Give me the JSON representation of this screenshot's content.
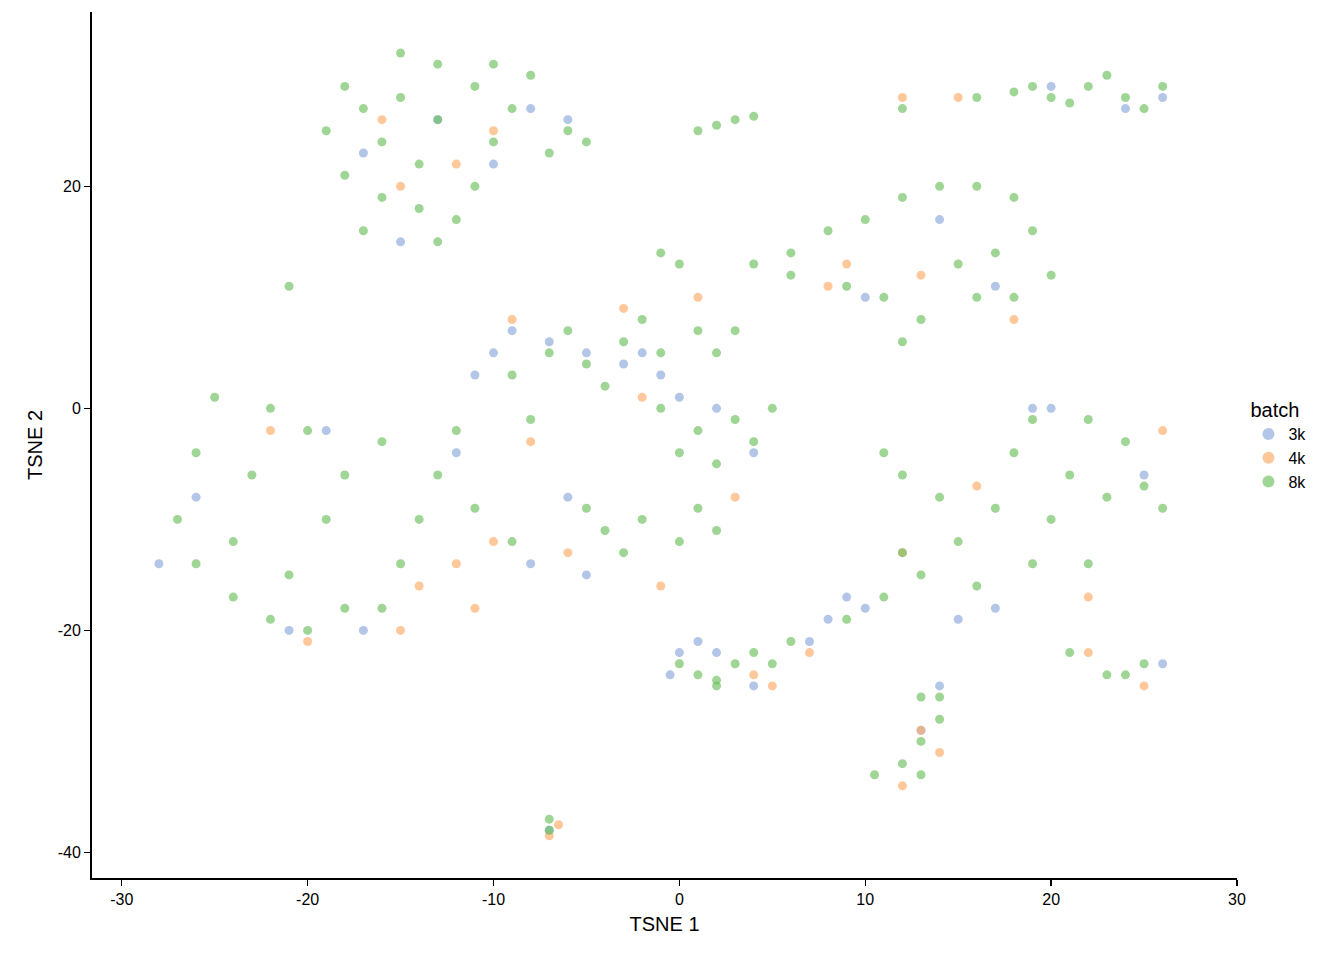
{
  "chart_data": {
    "type": "scatter",
    "x_label": "TSNE 1",
    "y_label": "TSNE 2",
    "legend_title": "batch",
    "legend": "right",
    "grid": false,
    "marker": "circle",
    "xlim": [
      -31.6,
      30
    ],
    "ylim": [
      -42.3,
      35.7
    ],
    "xticks": [
      -30,
      -20,
      -10,
      0,
      10,
      20,
      30
    ],
    "yticks": [
      -40,
      -20,
      0,
      20
    ],
    "series": [
      {
        "name": "3k",
        "color": "#8aa8da",
        "points": [
          [
            -13,
            26
          ],
          [
            -17,
            23
          ],
          [
            -10,
            22
          ],
          [
            -8,
            27
          ],
          [
            -15,
            15
          ],
          [
            -6,
            26
          ],
          [
            20,
            29
          ],
          [
            24,
            27
          ],
          [
            26,
            28
          ],
          [
            14,
            17
          ],
          [
            10,
            10
          ],
          [
            17,
            11
          ],
          [
            -9,
            7
          ],
          [
            -7,
            6
          ],
          [
            -5,
            5
          ],
          [
            -3,
            4
          ],
          [
            -1,
            3
          ],
          [
            0,
            1
          ],
          [
            -10,
            5
          ],
          [
            -11,
            3
          ],
          [
            -2,
            5
          ],
          [
            -21,
            -20
          ],
          [
            -26,
            -8
          ],
          [
            -28,
            -14
          ],
          [
            -17,
            -20
          ],
          [
            -19,
            -2
          ],
          [
            -12,
            -4
          ],
          [
            -6,
            -8
          ],
          [
            -8,
            -14
          ],
          [
            -5,
            -15
          ],
          [
            4,
            -4
          ],
          [
            2,
            0
          ],
          [
            0,
            -22
          ],
          [
            -0.5,
            -24
          ],
          [
            1,
            -21
          ],
          [
            7,
            -21
          ],
          [
            8,
            -19
          ],
          [
            10,
            -18
          ],
          [
            9,
            -17
          ],
          [
            15,
            -19
          ],
          [
            17,
            -18
          ],
          [
            20,
            0
          ],
          [
            19,
            0
          ],
          [
            25,
            -6
          ],
          [
            13,
            -29
          ],
          [
            14,
            -25
          ],
          [
            -7,
            -38
          ],
          [
            2,
            -22
          ],
          [
            4,
            -25
          ],
          [
            26,
            -23
          ]
        ]
      },
      {
        "name": "4k",
        "color": "#fdaa66",
        "points": [
          [
            -12,
            22
          ],
          [
            -15,
            20
          ],
          [
            -10,
            25
          ],
          [
            -16,
            26
          ],
          [
            12,
            28
          ],
          [
            15,
            28
          ],
          [
            9,
            13
          ],
          [
            13,
            12
          ],
          [
            18,
            8
          ],
          [
            8,
            11
          ],
          [
            -8,
            -3
          ],
          [
            -10,
            -12
          ],
          [
            -12,
            -14
          ],
          [
            -14,
            -16
          ],
          [
            -11,
            -18
          ],
          [
            -15,
            -20
          ],
          [
            -20,
            -21
          ],
          [
            -22,
            -2
          ],
          [
            -9,
            8
          ],
          [
            -3,
            9
          ],
          [
            1,
            10
          ],
          [
            -2,
            1
          ],
          [
            -6,
            -13
          ],
          [
            3,
            -8
          ],
          [
            -1,
            -16
          ],
          [
            7,
            -22
          ],
          [
            4,
            -24
          ],
          [
            12,
            -13
          ],
          [
            16,
            -7
          ],
          [
            26,
            -2
          ],
          [
            22,
            -17
          ],
          [
            12,
            -34
          ],
          [
            14,
            -31
          ],
          [
            13,
            -29
          ],
          [
            -7,
            -38.5
          ],
          [
            -6.5,
            -37.5
          ],
          [
            22,
            -22
          ],
          [
            25,
            -25
          ],
          [
            5,
            -25
          ]
        ]
      },
      {
        "name": "8k",
        "color": "#6cc05c",
        "points": [
          [
            -13,
            26
          ],
          [
            -15,
            28
          ],
          [
            -11,
            29
          ],
          [
            -17,
            27
          ],
          [
            -9,
            27
          ],
          [
            -13,
            31
          ],
          [
            -16,
            24
          ],
          [
            -10,
            24
          ],
          [
            -6,
            25
          ],
          [
            -7,
            23
          ],
          [
            -5,
            24
          ],
          [
            -18,
            29
          ],
          [
            -14,
            22
          ],
          [
            -14,
            18
          ],
          [
            -16,
            19
          ],
          [
            -12,
            17
          ],
          [
            -17,
            16
          ],
          [
            -13,
            15
          ],
          [
            -11,
            20
          ],
          [
            -18,
            21
          ],
          [
            -19,
            25
          ],
          [
            -8,
            30
          ],
          [
            -15,
            32
          ],
          [
            -10,
            31
          ],
          [
            1,
            25
          ],
          [
            2,
            25.5
          ],
          [
            3,
            26
          ],
          [
            4,
            26.3
          ],
          [
            16,
            28
          ],
          [
            18,
            28.5
          ],
          [
            20,
            28
          ],
          [
            22,
            29
          ],
          [
            24,
            28
          ],
          [
            26,
            29
          ],
          [
            23,
            30
          ],
          [
            25,
            27
          ],
          [
            21,
            27.5
          ],
          [
            12,
            27
          ],
          [
            19,
            29
          ],
          [
            6,
            14
          ],
          [
            8,
            16
          ],
          [
            10,
            17
          ],
          [
            12,
            19
          ],
          [
            14,
            20
          ],
          [
            16,
            20
          ],
          [
            18,
            19
          ],
          [
            19,
            16
          ],
          [
            20,
            12
          ],
          [
            18,
            10
          ],
          [
            16,
            10
          ],
          [
            13,
            8
          ],
          [
            11,
            10
          ],
          [
            9,
            11
          ],
          [
            6,
            12
          ],
          [
            4,
            13
          ],
          [
            15,
            13
          ],
          [
            17,
            14
          ],
          [
            12,
            6
          ],
          [
            3,
            7
          ],
          [
            0,
            13
          ],
          [
            -1,
            14
          ],
          [
            -21,
            11
          ],
          [
            -21,
            -15
          ],
          [
            -24,
            -12
          ],
          [
            -26,
            -14
          ],
          [
            -22,
            -19
          ],
          [
            -18,
            -18
          ],
          [
            -15,
            -14
          ],
          [
            -19,
            -10
          ],
          [
            -23,
            -6
          ],
          [
            -26,
            -4
          ],
          [
            -20,
            -2
          ],
          [
            -16,
            -3
          ],
          [
            -13,
            -6
          ],
          [
            -11,
            -9
          ],
          [
            -14,
            -10
          ],
          [
            -18,
            -6
          ],
          [
            -24,
            -17
          ],
          [
            -27,
            -10
          ],
          [
            -20,
            -20
          ],
          [
            -12,
            -2
          ],
          [
            -22,
            0
          ],
          [
            -9,
            -12
          ],
          [
            -16,
            -18
          ],
          [
            -25,
            1
          ],
          [
            -9,
            3
          ],
          [
            -7,
            5
          ],
          [
            -5,
            4
          ],
          [
            -3,
            6
          ],
          [
            -1,
            5
          ],
          [
            1,
            7
          ],
          [
            2,
            5
          ],
          [
            -4,
            2
          ],
          [
            -8,
            -1
          ],
          [
            -2,
            8
          ],
          [
            -6,
            7
          ],
          [
            1,
            -2
          ],
          [
            3,
            -1
          ],
          [
            5,
            0
          ],
          [
            0,
            -4
          ],
          [
            2,
            -5
          ],
          [
            4,
            -3
          ],
          [
            -1,
            0
          ],
          [
            -4,
            -11
          ],
          [
            -2,
            -10
          ],
          [
            0,
            -12
          ],
          [
            2,
            -11
          ],
          [
            -3,
            -13
          ],
          [
            1,
            -9
          ],
          [
            -5,
            -9
          ],
          [
            21,
            -6
          ],
          [
            18,
            -4
          ],
          [
            24,
            -3
          ],
          [
            23,
            -8
          ],
          [
            20,
            -10
          ],
          [
            25,
            -7
          ],
          [
            17,
            -9
          ],
          [
            15,
            -12
          ],
          [
            13,
            -15
          ],
          [
            11,
            -17
          ],
          [
            9,
            -19
          ],
          [
            6,
            -21
          ],
          [
            4,
            -22
          ],
          [
            19,
            -1
          ],
          [
            22,
            -1
          ],
          [
            26,
            -9
          ],
          [
            16,
            -16
          ],
          [
            19,
            -14
          ],
          [
            14,
            -8
          ],
          [
            12,
            -13
          ],
          [
            22,
            -14
          ],
          [
            1,
            -24
          ],
          [
            3,
            -23
          ],
          [
            2,
            -25
          ],
          [
            0,
            -23
          ],
          [
            5,
            -23
          ],
          [
            13,
            -26
          ],
          [
            14,
            -28
          ],
          [
            13,
            -30
          ],
          [
            12,
            -32
          ],
          [
            13,
            -33
          ],
          [
            14,
            -26
          ],
          [
            24,
            -24
          ],
          [
            25,
            -23
          ],
          [
            23,
            -24
          ],
          [
            21,
            -22
          ],
          [
            -7,
            -38
          ],
          [
            -7,
            -37
          ],
          [
            10.5,
            -33
          ],
          [
            11,
            -4
          ],
          [
            12,
            -6
          ],
          [
            2,
            -24.5
          ]
        ]
      }
    ]
  }
}
